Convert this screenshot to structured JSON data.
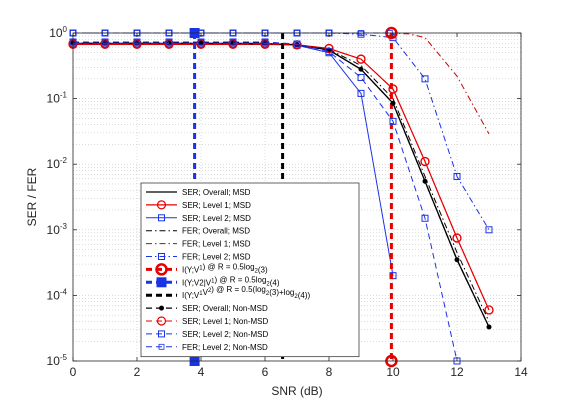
{
  "chart_data": {
    "type": "line",
    "xlabel": "SNR (dB)",
    "ylabel": "SER / FER",
    "xlim": [
      0,
      14
    ],
    "ylim": [
      1e-05,
      1
    ],
    "y_scale": "log",
    "grid": true,
    "legend_position": "bottom-center",
    "x_ticks": [
      "0",
      "2",
      "4",
      "6",
      "8",
      "10",
      "12",
      "14"
    ],
    "y_ticks": [
      {
        "base": "10",
        "exp": "0"
      },
      {
        "base": "10",
        "exp": "-1"
      },
      {
        "base": "10",
        "exp": "-2"
      },
      {
        "base": "10",
        "exp": "-3"
      },
      {
        "base": "10",
        "exp": "-4"
      },
      {
        "base": "10",
        "exp": "-5"
      }
    ],
    "series": [
      {
        "name": "SER; Overall; MSD",
        "color": "#000000",
        "dash": "solid",
        "marker": "none",
        "width": 1.3,
        "x": [
          0,
          1,
          2,
          3,
          4,
          5,
          6,
          7,
          8,
          9,
          10,
          11,
          12,
          13
        ],
        "y": [
          0.68,
          0.68,
          0.68,
          0.68,
          0.68,
          0.68,
          0.68,
          0.66,
          0.55,
          0.28,
          0.085,
          0.0055,
          0.00035,
          3.3e-05
        ]
      },
      {
        "name": "SER; Level 1; MSD",
        "color": "#e60000",
        "dash": "solid",
        "marker": "circle",
        "width": 1.2,
        "x": [
          0,
          1,
          2,
          3,
          4,
          5,
          6,
          7,
          8,
          9,
          10,
          11,
          12,
          13
        ],
        "y": [
          0.67,
          0.67,
          0.67,
          0.67,
          0.67,
          0.67,
          0.67,
          0.66,
          0.58,
          0.4,
          0.14,
          0.011,
          0.00075,
          6e-05
        ]
      },
      {
        "name": "SER; Level 2; MSD",
        "color": "#1a33e6",
        "dash": "solid",
        "marker": "square",
        "width": 1.0,
        "x": [
          0,
          1,
          2,
          3,
          4,
          5,
          6,
          7,
          8,
          9,
          10
        ],
        "y": [
          0.7,
          0.7,
          0.7,
          0.7,
          0.7,
          0.7,
          0.7,
          0.65,
          0.5,
          0.12,
          0.0002
        ]
      },
      {
        "name": "FER; Overall; MSD",
        "color": "#000000",
        "dash": "dashdot",
        "marker": "none",
        "width": 1.0,
        "x": [
          0,
          4,
          7,
          8,
          9,
          10,
          11,
          12,
          13
        ],
        "y": [
          0.7,
          0.7,
          0.67,
          0.56,
          0.32,
          0.1,
          0.0065,
          0.00045,
          4e-05
        ]
      },
      {
        "name": "FER; Level 1; MSD",
        "color": "#cc0000",
        "dash": "dashdot",
        "marker": "none",
        "width": 1.0,
        "x": [
          9.9,
          10.5,
          11,
          12,
          13
        ],
        "y": [
          1.0,
          0.97,
          0.85,
          0.22,
          0.029
        ]
      },
      {
        "name": "FER; Level 2; MSD",
        "color": "#1a33e6",
        "dash": "dashdot",
        "marker": "square",
        "width": 1.0,
        "x": [
          0,
          1,
          2,
          3,
          4,
          5,
          6,
          7,
          8,
          9,
          10,
          11,
          12,
          13
        ],
        "y": [
          1.0,
          1.0,
          1.0,
          1.0,
          1.0,
          1.0,
          1.0,
          1.0,
          1.0,
          0.96,
          0.85,
          0.2,
          0.0065,
          0.001
        ]
      },
      {
        "name": "I(Y;V^1) @ R = 0.5log_2(3)",
        "color": "#e60000",
        "dash": "dash",
        "marker": "circle-big",
        "width": 3,
        "x": [
          9.95,
          9.95
        ],
        "y": [
          1.0,
          1e-05
        ]
      },
      {
        "name": "I(Y;V2|V^1) @ R = 0.5log_2(4)",
        "color": "#1a33e6",
        "dash": "dash",
        "marker": "square-big",
        "width": 3,
        "x": [
          3.8,
          3.8
        ],
        "y": [
          1.0,
          1e-05
        ]
      },
      {
        "name": "I(Y;V^1V^2) @ R = 0.5(log_2(3)+log_2(4))",
        "color": "#000000",
        "dash": "dash",
        "marker": "none",
        "width": 3,
        "x": [
          6.55,
          6.55
        ],
        "y": [
          1.0,
          1e-05
        ]
      },
      {
        "name": "SER; Overall; Non-MSD",
        "color": "#000000",
        "dash": "dash",
        "marker": "dot",
        "width": 1.2,
        "x": [
          0,
          1,
          2,
          3,
          4,
          5,
          6,
          7,
          8,
          9,
          10,
          11,
          12,
          13
        ],
        "y": [
          0.7,
          0.7,
          0.7,
          0.7,
          0.7,
          0.7,
          0.7,
          0.66,
          0.55,
          0.28,
          0.085,
          0.0055,
          0.00035,
          3.3e-05
        ]
      },
      {
        "name": "SER; Level 1; Non-MSD",
        "color": "#e60000",
        "dash": "dash",
        "marker": "circle",
        "width": 1.0,
        "x": [
          0,
          1,
          2,
          3,
          4,
          5,
          6,
          7,
          8,
          9,
          10,
          11,
          12,
          13
        ],
        "y": [
          0.69,
          0.69,
          0.69,
          0.69,
          0.69,
          0.69,
          0.69,
          0.66,
          0.58,
          0.4,
          0.14,
          0.011,
          0.00075,
          6e-05
        ]
      },
      {
        "name": "SER; Level 2; Non-MSD",
        "color": "#1a33e6",
        "dash": "dash",
        "marker": "square",
        "width": 1.0,
        "x": [
          0,
          1,
          2,
          3,
          4,
          5,
          6,
          7,
          8,
          9,
          10,
          11,
          12
        ],
        "y": [
          0.73,
          0.73,
          0.73,
          0.73,
          0.73,
          0.73,
          0.73,
          0.68,
          0.52,
          0.21,
          0.045,
          0.0015,
          1e-05
        ]
      },
      {
        "name": "FER; Level 2; Non-MSD",
        "color": "#1a33e6",
        "dash": "dash",
        "marker": "dot-square",
        "width": 1.0,
        "x": [
          0,
          1,
          2,
          3,
          4,
          5,
          6,
          7,
          8,
          9,
          9.9
        ],
        "y": [
          1.0,
          1.0,
          1.0,
          1.0,
          1.0,
          1.0,
          1.0,
          1.0,
          1.0,
          1.0,
          1.0
        ]
      }
    ],
    "legend": [
      {
        "parts": [
          {
            "t": "SER; Overall; MSD"
          }
        ]
      },
      {
        "parts": [
          {
            "t": "SER; Level 1; MSD"
          }
        ]
      },
      {
        "parts": [
          {
            "t": "SER; Level 2; MSD"
          }
        ]
      },
      {
        "parts": [
          {
            "t": "FER; Overall; MSD"
          }
        ]
      },
      {
        "parts": [
          {
            "t": "FER; Level 1; MSD"
          }
        ]
      },
      {
        "parts": [
          {
            "t": "FER; Level 2; MSD"
          }
        ]
      },
      {
        "parts": [
          {
            "t": "I(Y;V"
          },
          {
            "t": "1",
            "sup": true
          },
          {
            "t": ")      @ R = 0.5log"
          },
          {
            "t": "2",
            "sub": true
          },
          {
            "t": "(3)"
          }
        ]
      },
      {
        "parts": [
          {
            "t": "I(Y;V2|V"
          },
          {
            "t": "1",
            "sup": true
          },
          {
            "t": ")   @ R = 0.5log"
          },
          {
            "t": "2",
            "sub": true
          },
          {
            "t": "(4)"
          }
        ]
      },
      {
        "parts": [
          {
            "t": "I(Y;V"
          },
          {
            "t": "1",
            "sup": true
          },
          {
            "t": "V"
          },
          {
            "t": "2",
            "sup": true
          },
          {
            "t": ")  @ R = 0.5(log"
          },
          {
            "t": "2",
            "sub": true
          },
          {
            "t": "(3)+log"
          },
          {
            "t": "2",
            "sub": true
          },
          {
            "t": "(4))"
          }
        ]
      },
      {
        "parts": [
          {
            "t": "SER; Overall; Non-MSD"
          }
        ]
      },
      {
        "parts": [
          {
            "t": "SER; Level 1; Non-MSD"
          }
        ]
      },
      {
        "parts": [
          {
            "t": "SER; Level 2; Non-MSD"
          }
        ]
      },
      {
        "parts": [
          {
            "t": "FER; Level 2; Non-MSD"
          }
        ]
      }
    ]
  }
}
